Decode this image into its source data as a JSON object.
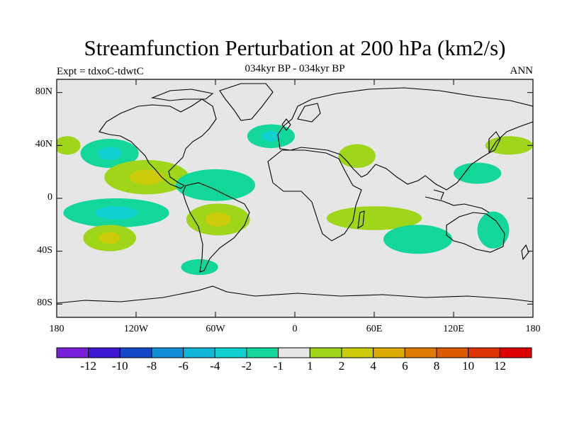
{
  "title": "Streamfunction Perturbation at 200 hPa (km2/s)",
  "subtitle": "034kyr BP - 034kyr BP",
  "experiment": "Expt = tdxoC-tdwtC",
  "season": "ANN",
  "axes": {
    "y_ticks": [
      {
        "label": "80N",
        "lat": 80
      },
      {
        "label": "40N",
        "lat": 40
      },
      {
        "label": "0",
        "lat": 0
      },
      {
        "label": "40S",
        "lat": -40
      },
      {
        "label": "80S",
        "lat": -80
      }
    ],
    "x_ticks": [
      {
        "label": "180",
        "lon": -180
      },
      {
        "label": "120W",
        "lon": -120
      },
      {
        "label": "60W",
        "lon": -60
      },
      {
        "label": "0",
        "lon": 0
      },
      {
        "label": "60E",
        "lon": 60
      },
      {
        "label": "120E",
        "lon": 120
      },
      {
        "label": "180",
        "lon": 180
      }
    ],
    "lon_range": [
      -180,
      180
    ],
    "lat_range": [
      -90,
      90
    ]
  },
  "colorbar": {
    "colors": [
      "#7a1fd9",
      "#3f16d1",
      "#1548c9",
      "#118fd6",
      "#10b6d8",
      "#0fcfcf",
      "#13d69a",
      "#e6e6e6",
      "#9fd61a",
      "#cccc0a",
      "#ddaa00",
      "#dd7a00",
      "#dd5a00",
      "#dd3300",
      "#dd0000"
    ],
    "labels": [
      {
        "text": "-12",
        "index": 1
      },
      {
        "text": "-10",
        "index": 2
      },
      {
        "text": "-8",
        "index": 3
      },
      {
        "text": "-6",
        "index": 4
      },
      {
        "text": "-4",
        "index": 5
      },
      {
        "text": "-2",
        "index": 6
      },
      {
        "text": "-1",
        "index": 7
      },
      {
        "text": "1",
        "index": 8
      },
      {
        "text": "2",
        "index": 9
      },
      {
        "text": "4",
        "index": 10
      },
      {
        "text": "6",
        "index": 11
      },
      {
        "text": "8",
        "index": 12
      },
      {
        "text": "10",
        "index": 13
      },
      {
        "text": "12",
        "index": 14
      }
    ]
  },
  "chart_data": {
    "type": "heatmap",
    "variable": "Streamfunction Perturbation at 200 hPa",
    "units": "km2/s",
    "levels": [
      -12,
      -10,
      -8,
      -6,
      -4,
      -2,
      -1,
      1,
      2,
      4,
      6,
      8,
      10,
      12
    ],
    "anomalies": [
      {
        "name": "n-pacific-neg",
        "lon": -140,
        "lat": 34,
        "dlon": 22,
        "dlat": 11,
        "value": -3
      },
      {
        "name": "n-atlantic-neg",
        "lon": -18,
        "lat": 47,
        "dlon": 18,
        "dlat": 9,
        "value": -3
      },
      {
        "name": "tropical-e-pacific-pos",
        "lon": -112,
        "lat": 16,
        "dlon": 32,
        "dlat": 13,
        "value": 3
      },
      {
        "name": "caribbean-neg",
        "lon": -60,
        "lat": 10,
        "dlon": 30,
        "dlat": 12,
        "value": -1.5
      },
      {
        "name": "s-pacific-neg",
        "lon": -135,
        "lat": -11,
        "dlon": 40,
        "dlat": 11,
        "value": -3
      },
      {
        "name": "s-pacific-pos",
        "lon": -140,
        "lat": -30,
        "dlon": 20,
        "dlat": 10,
        "value": 3
      },
      {
        "name": "s-america-pos",
        "lon": -58,
        "lat": -16,
        "dlon": 24,
        "dlat": 12,
        "value": 3
      },
      {
        "name": "s-atlantic-neg",
        "lon": -72,
        "lat": -52,
        "dlon": 14,
        "dlat": 6,
        "value": -1.5
      },
      {
        "name": "middle-east-pos",
        "lon": 47,
        "lat": 32,
        "dlon": 14,
        "dlat": 9,
        "value": 1.5
      },
      {
        "name": "w-pacific-pos",
        "lon": 162,
        "lat": 40,
        "dlon": 18,
        "dlat": 7,
        "value": 1.5
      },
      {
        "name": "e-pacific-pos",
        "lon": -172,
        "lat": 40,
        "dlon": 10,
        "dlat": 7,
        "value": 1.5
      },
      {
        "name": "indian-ocean-pos",
        "lon": 60,
        "lat": -15,
        "dlon": 36,
        "dlat": 9,
        "value": 1.5
      },
      {
        "name": "s-indian-neg",
        "lon": 93,
        "lat": -31,
        "dlon": 26,
        "dlat": 11,
        "value": -1.5
      },
      {
        "name": "w-pacific-tropical-neg",
        "lon": 138,
        "lat": 19,
        "dlon": 18,
        "dlat": 8,
        "value": -1.5
      },
      {
        "name": "australia-neg",
        "lon": 150,
        "lat": -24,
        "dlon": 12,
        "dlat": 14,
        "value": -1.5
      }
    ]
  }
}
